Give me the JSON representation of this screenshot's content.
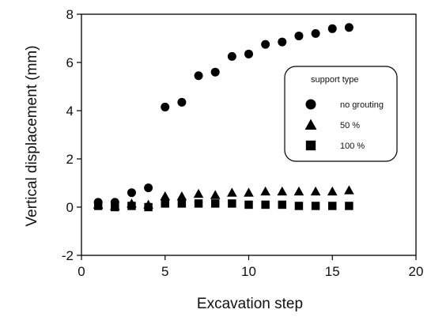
{
  "chart_data": {
    "type": "scatter",
    "xlabel": "Excavation step",
    "ylabel": "Vertical displacement (mm)",
    "xlim": [
      0,
      20
    ],
    "ylim": [
      -2,
      8
    ],
    "x_ticks": [
      "0",
      "5",
      "10",
      "15",
      "20"
    ],
    "y_ticks": [
      "-2",
      "0",
      "2",
      "4",
      "6",
      "8"
    ],
    "grid": false,
    "legend": {
      "title": "support type",
      "placement": "right"
    },
    "series": [
      {
        "name": "no grouting",
        "marker": "circle",
        "color": "#000000",
        "x": [
          1,
          2,
          3,
          4,
          5,
          6,
          7,
          8,
          9,
          10,
          11,
          12,
          13,
          14,
          15,
          16
        ],
        "y": [
          0.2,
          0.2,
          0.6,
          0.8,
          4.15,
          4.35,
          5.45,
          5.6,
          6.25,
          6.35,
          6.75,
          6.85,
          7.1,
          7.2,
          7.4,
          7.45
        ]
      },
      {
        "name": "50 %",
        "marker": "triangle",
        "color": "#000000",
        "x": [
          1,
          2,
          3,
          4,
          5,
          6,
          7,
          8,
          9,
          10,
          11,
          12,
          13,
          14,
          15,
          16
        ],
        "y": [
          0.1,
          0.05,
          0.15,
          0.1,
          0.45,
          0.45,
          0.55,
          0.5,
          0.6,
          0.6,
          0.65,
          0.65,
          0.65,
          0.65,
          0.65,
          0.7
        ]
      },
      {
        "name": "100 %",
        "marker": "square",
        "color": "#000000",
        "x": [
          1,
          2,
          3,
          4,
          5,
          6,
          7,
          8,
          9,
          10,
          11,
          12,
          13,
          14,
          15,
          16
        ],
        "y": [
          0.05,
          0.0,
          0.05,
          0.0,
          0.15,
          0.15,
          0.15,
          0.15,
          0.15,
          0.1,
          0.1,
          0.1,
          0.05,
          0.05,
          0.05,
          0.05
        ]
      }
    ]
  }
}
